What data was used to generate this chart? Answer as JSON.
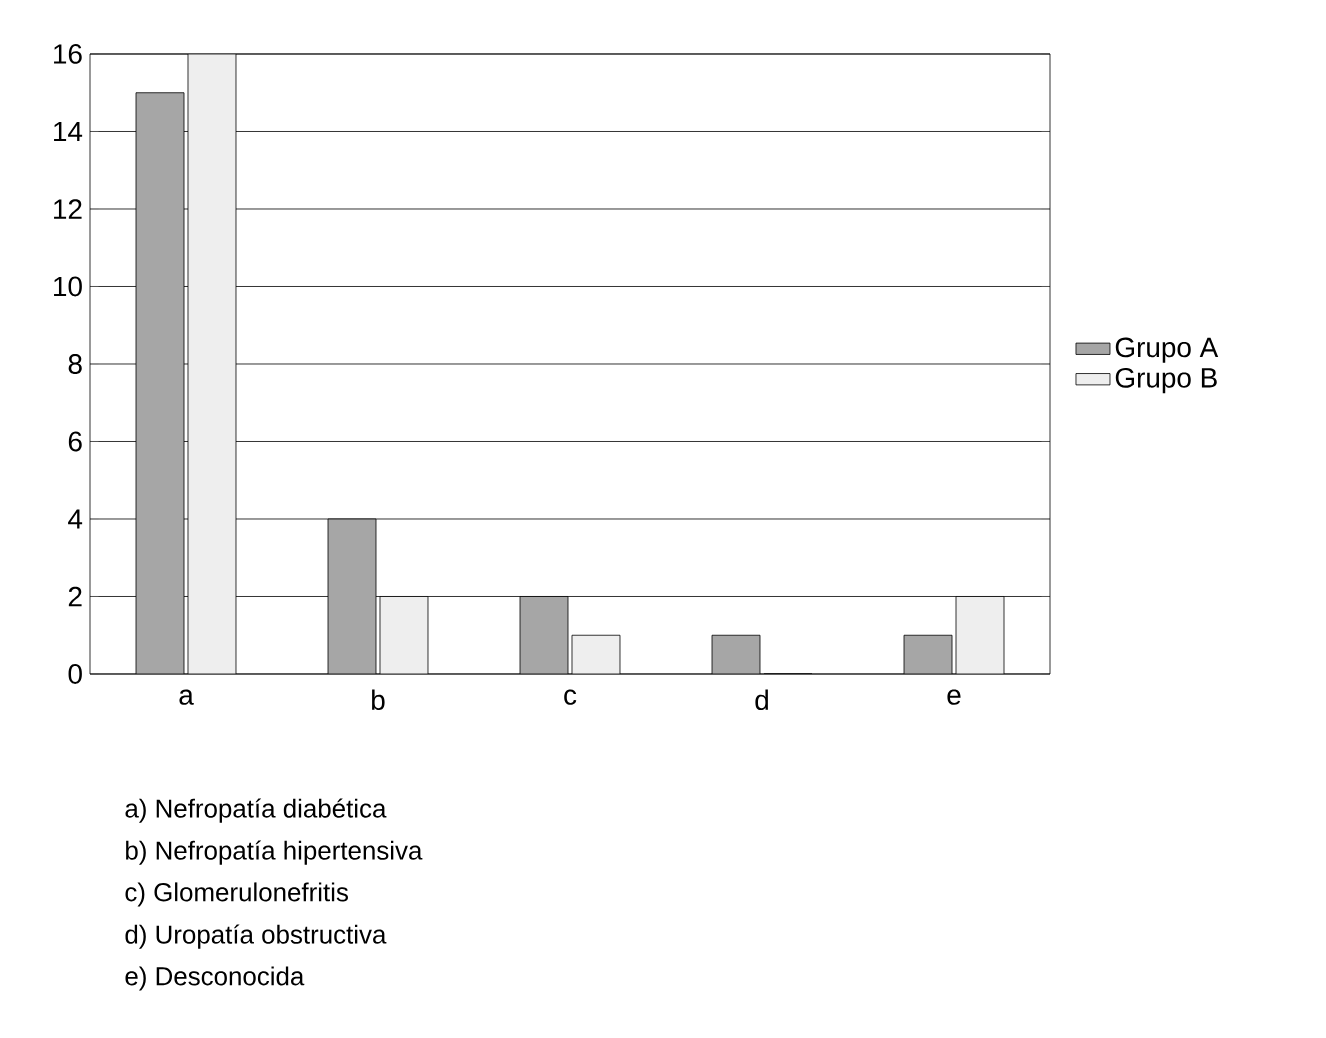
{
  "chart_data": {
    "type": "bar",
    "categories": [
      "a",
      "b",
      "c",
      "d",
      "e"
    ],
    "series": [
      {
        "name": "Grupo A",
        "color": "#a6a6a6",
        "values": [
          15,
          4,
          2,
          1,
          1
        ]
      },
      {
        "name": "Grupo B",
        "color": "#eeeeee",
        "values": [
          16,
          2,
          1,
          0,
          2
        ]
      }
    ],
    "ylim": [
      0,
      16
    ],
    "yticks": [
      0,
      2,
      4,
      6,
      8,
      10,
      12,
      14,
      16
    ],
    "grid": "y",
    "legend": "right",
    "annotations": [
      "a) Nefropatía diabética",
      "b) Nefropatía hipertensiva",
      "c) Glomerulonefritis",
      "d) Uropatía obstructiva",
      "e) Desconocida"
    ]
  }
}
